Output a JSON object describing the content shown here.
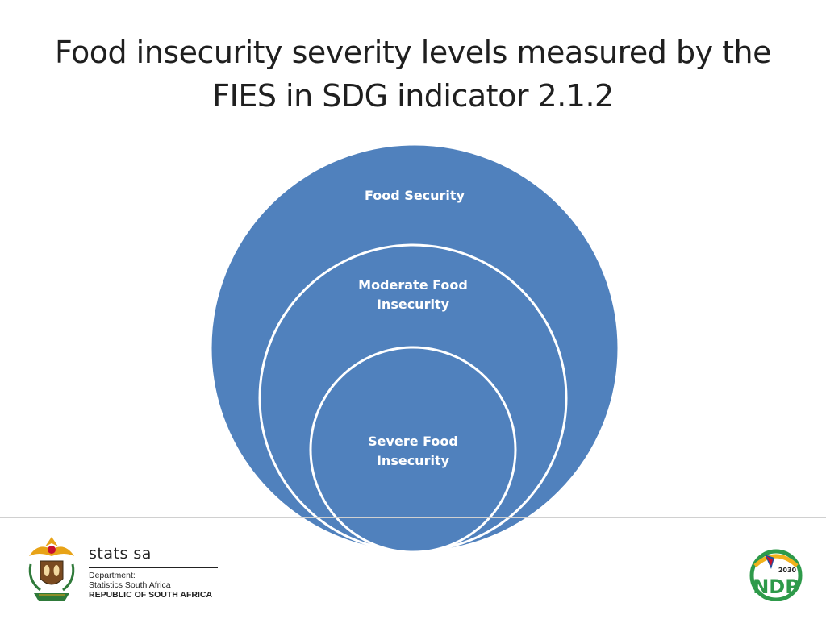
{
  "slide": {
    "title_line1": "Food insecurity severity levels measured by the",
    "title_line2": "FIES in SDG indicator 2.1.2"
  },
  "diagram": {
    "fill_color": "#5081bd",
    "border_color": "#ffffff",
    "circles": [
      {
        "line1": "Food Security",
        "line2": ""
      },
      {
        "line1": "Moderate Food",
        "line2": "Insecurity"
      },
      {
        "line1": "Severe Food",
        "line2": "Insecurity"
      }
    ]
  },
  "footer": {
    "brand": "stats sa",
    "dept_line1": "Department:",
    "dept_line2": "Statistics South Africa",
    "dept_line3": "REPUBLIC OF SOUTH AFRICA",
    "ndp_year": "2030",
    "ndp_text": "NDP"
  }
}
